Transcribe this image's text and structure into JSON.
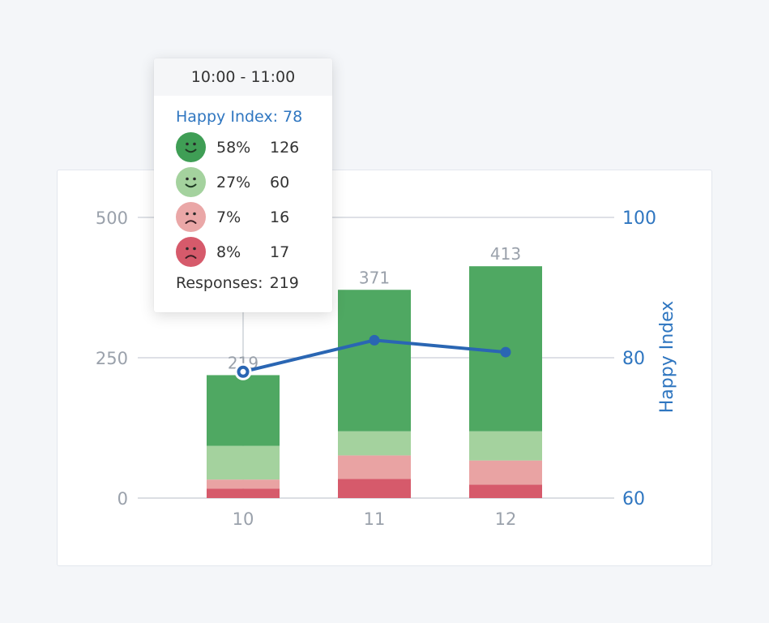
{
  "chart_data": {
    "type": "bar",
    "categories": [
      "10",
      "11",
      "12"
    ],
    "stacked_series": [
      {
        "name": "very happy",
        "color": "#4fa862",
        "values": [
          126,
          252,
          294
        ]
      },
      {
        "name": "happy",
        "color": "#a4d29e",
        "values": [
          60,
          43,
          52
        ]
      },
      {
        "name": "unhappy",
        "color": "#e9a3a3",
        "values": [
          16,
          42,
          43
        ]
      },
      {
        "name": "very unhappy",
        "color": "#d65a6b",
        "values": [
          17,
          34,
          24
        ]
      }
    ],
    "totals": [
      219,
      371,
      413
    ],
    "line_series": {
      "name": "Happy Index",
      "color": "#2a66b3",
      "values": [
        78,
        82.5,
        80.8
      ]
    },
    "y_left": {
      "ticks": [
        "0",
        "250",
        "500"
      ],
      "ylim": [
        0,
        500
      ]
    },
    "y_right": {
      "label": "Happy Index",
      "ticks": [
        "60",
        "80",
        "100"
      ],
      "ylim": [
        60,
        100
      ]
    },
    "highlight_index": 0
  },
  "tooltip": {
    "time_range": "10:00 - 11:00",
    "happy_index_label": "Happy Index:",
    "happy_index_value": "78",
    "rows": [
      {
        "icon": "very-happy-face-icon",
        "color": "#3f9e55",
        "mood": "happy",
        "pct": "58%",
        "count": "126"
      },
      {
        "icon": "happy-face-icon",
        "color": "#a4d29e",
        "mood": "happy",
        "pct": "27%",
        "count": "60"
      },
      {
        "icon": "unhappy-face-icon",
        "color": "#eaa7a7",
        "mood": "sad",
        "pct": "7%",
        "count": "16"
      },
      {
        "icon": "very-unhappy-face-icon",
        "color": "#d65a6b",
        "mood": "sad",
        "pct": "8%",
        "count": "17"
      }
    ],
    "responses_label": "Responses:",
    "responses_value": "219"
  }
}
